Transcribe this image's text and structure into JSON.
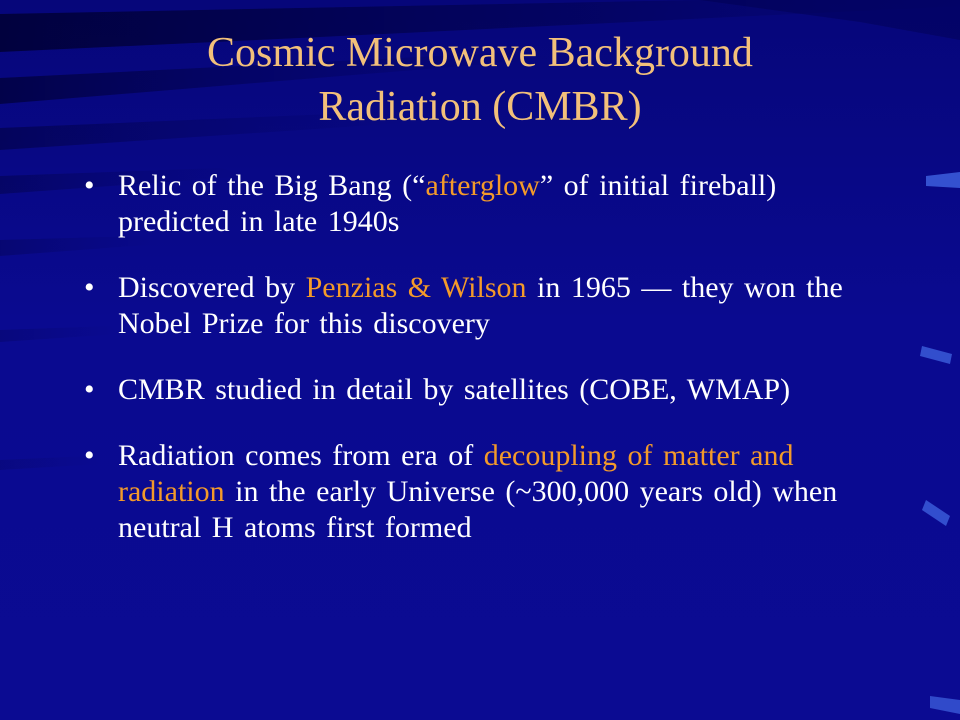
{
  "title": {
    "line1": "Cosmic Microwave Background",
    "line2": "Radiation (CMBR)"
  },
  "bullets": [
    {
      "segments": [
        {
          "text": "Relic of the Big Bang (“",
          "highlight": false
        },
        {
          "text": "afterglow",
          "highlight": true
        },
        {
          "text": "” of initial fireball) predicted in late 1940s",
          "highlight": false
        }
      ]
    },
    {
      "segments": [
        {
          "text": "Discovered by ",
          "highlight": false
        },
        {
          "text": "Penzias & Wilson",
          "highlight": true
        },
        {
          "text": " in 1965 — they won the Nobel Prize for this discovery",
          "highlight": false
        }
      ]
    },
    {
      "segments": [
        {
          "text": "CMBR studied in detail by satellites (COBE, WMAP)",
          "highlight": false
        }
      ]
    },
    {
      "segments": [
        {
          "text": "Radiation comes from era of ",
          "highlight": false
        },
        {
          "text": "decoupling of matter and radiation",
          "highlight": true
        },
        {
          "text": " in the early Universe (~300,000 years old) when neutral H atoms first formed",
          "highlight": false
        }
      ]
    }
  ],
  "colors": {
    "background": "#0a0a8a",
    "title": "#f2c07a",
    "text": "#ffffff",
    "highlight": "#f39a2a"
  }
}
